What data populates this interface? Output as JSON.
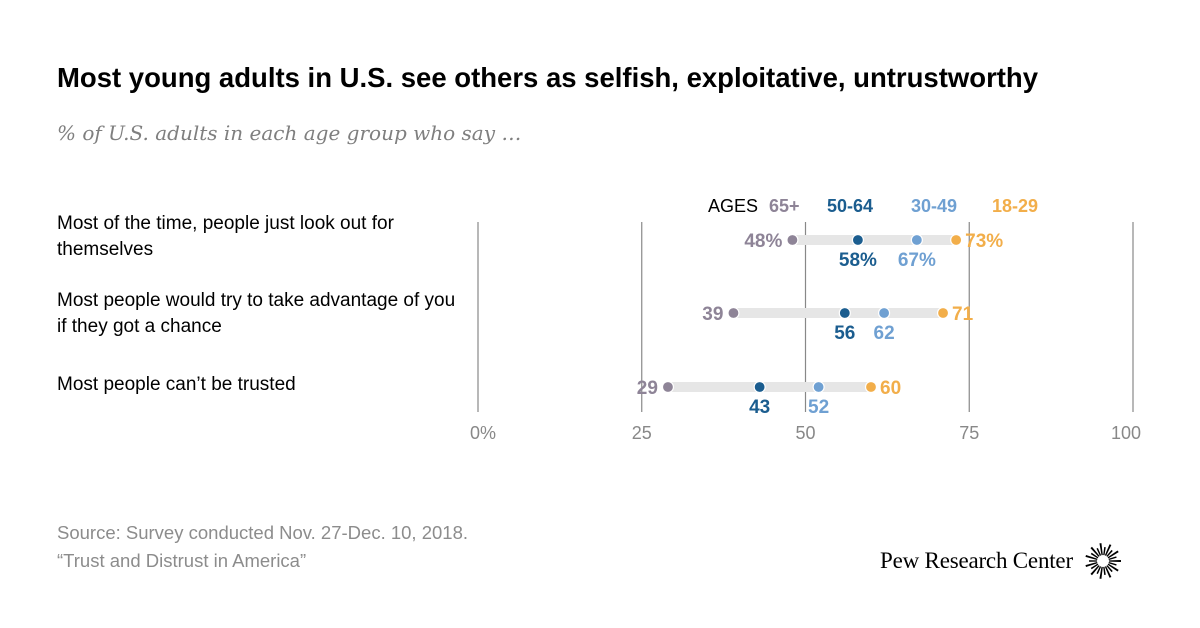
{
  "title": "Most young adults in U.S. see others as selfish, exploitative, untrustworthy",
  "subtitle": "% of U.S. adults in each age group who say …",
  "source": {
    "line1": "Source: Survey conducted Nov. 27-Dec. 10, 2018.",
    "line2": "“Trust and Distrust in America”"
  },
  "brand": {
    "name": "Pew Research Center",
    "icon": "pew-sunburst-logo"
  },
  "colors": {
    "age_65_plus": "#8e8497",
    "age_50_64": "#1b5d8f",
    "age_30_49": "#6fa0d2",
    "age_18_29": "#f2ae4a",
    "range_bar": "#e6e6e6",
    "gridline": "#888888",
    "tick_text": "#888888"
  },
  "chart_data": {
    "type": "dot",
    "legend": {
      "prefix": "AGES",
      "placement": "top"
    },
    "xlim": [
      0,
      100
    ],
    "x_ticks": [
      {
        "value": 0,
        "label": "0%"
      },
      {
        "value": 25,
        "label": "25"
      },
      {
        "value": 50,
        "label": "50"
      },
      {
        "value": 75,
        "label": "75"
      },
      {
        "value": 100,
        "label": "100"
      }
    ],
    "categories": [
      "Most of the time, people just look out for themselves",
      "Most people would try to take advantage of you if they got a chance",
      "Most people can’t be trusted"
    ],
    "series": [
      {
        "name": "65+",
        "color_key": "age_65_plus",
        "values": [
          48,
          39,
          29
        ],
        "labels": [
          "48%",
          "39",
          "29"
        ]
      },
      {
        "name": "50-64",
        "color_key": "age_50_64",
        "values": [
          58,
          56,
          43
        ],
        "labels": [
          "58%",
          "56",
          "43"
        ]
      },
      {
        "name": "30-49",
        "color_key": "age_30_49",
        "values": [
          67,
          62,
          52
        ],
        "labels": [
          "67%",
          "62",
          "52"
        ]
      },
      {
        "name": "18-29",
        "color_key": "age_18_29",
        "values": [
          73,
          71,
          60
        ],
        "labels": [
          "73%",
          "71",
          "60"
        ]
      }
    ]
  }
}
